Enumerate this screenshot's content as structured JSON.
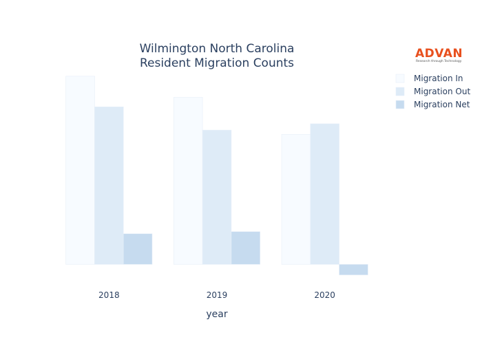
{
  "chart_data": {
    "type": "bar",
    "title": [
      "Wilmington North Carolina",
      "Resident Migration Counts"
    ],
    "xlabel": "year",
    "ylabel": "",
    "categories": [
      "2018",
      "2019",
      "2020"
    ],
    "series": [
      {
        "name": "Migration In",
        "values": [
          1780,
          1580,
          1230
        ],
        "color": "#f7fbff"
      },
      {
        "name": "Migration Out",
        "values": [
          1490,
          1270,
          1330
        ],
        "color": "#deebf7"
      },
      {
        "name": "Migration Net",
        "values": [
          290,
          310,
          -100
        ],
        "color": "#c6dbef"
      }
    ],
    "ylim": [
      -200,
      1850
    ],
    "grid": false,
    "legend": "top-right"
  },
  "logo": {
    "text": "ADVAN",
    "tagline": "Research through Technology",
    "color": "#e8501e"
  }
}
